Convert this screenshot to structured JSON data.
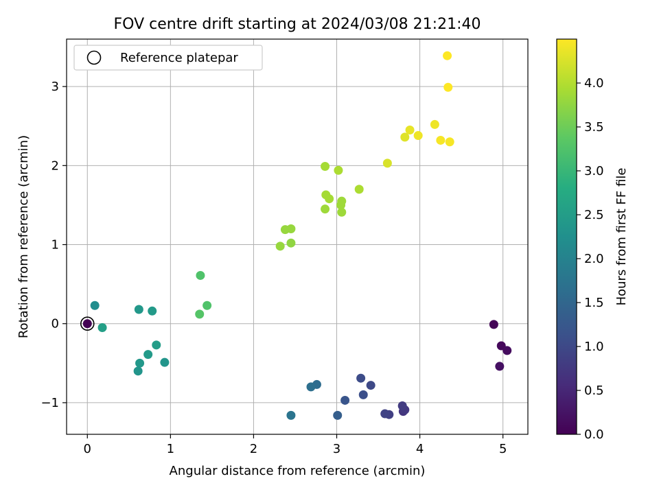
{
  "chart_data": {
    "type": "scatter",
    "title": "FOV centre drift starting at 2024/03/08 21:21:40",
    "xlabel": "Angular distance from reference (arcmin)",
    "ylabel": "Rotation from reference (arcmin)",
    "xlim": [
      -0.25,
      5.3
    ],
    "ylim": [
      -1.4,
      3.6
    ],
    "xticks": [
      0,
      1,
      2,
      3,
      4,
      5
    ],
    "xtick_labels": [
      "0",
      "1",
      "2",
      "3",
      "4",
      "5"
    ],
    "yticks": [
      -1,
      0,
      1,
      2,
      3
    ],
    "ytick_labels": [
      "−1",
      "0",
      "1",
      "2",
      "3"
    ],
    "grid": true,
    "legend": {
      "placement": "upper-left",
      "entries": [
        "Reference platepar"
      ]
    },
    "reference_point": {
      "x": 0,
      "y": 0
    },
    "colorbar": {
      "label": "Hours from first FF file",
      "colormap": "viridis",
      "range": [
        0,
        4.5
      ],
      "ticks": [
        0,
        0.5,
        1,
        1.5,
        2,
        2.5,
        3,
        3.5,
        4
      ],
      "tick_labels": [
        "0.0",
        "0.5",
        "1.0",
        "1.5",
        "2.0",
        "2.5",
        "3.0",
        "3.5",
        "4.0"
      ]
    },
    "points": [
      {
        "x": 0.0,
        "y": 0.0,
        "c": 0.0
      },
      {
        "x": 4.89,
        "y": -0.01,
        "c": 0.05
      },
      {
        "x": 4.98,
        "y": -0.28,
        "c": 0.1
      },
      {
        "x": 5.05,
        "y": -0.34,
        "c": 0.15
      },
      {
        "x": 4.96,
        "y": -0.54,
        "c": 0.2
      },
      {
        "x": 3.8,
        "y": -1.11,
        "c": 0.7
      },
      {
        "x": 3.82,
        "y": -1.09,
        "c": 0.75
      },
      {
        "x": 3.79,
        "y": -1.04,
        "c": 0.8
      },
      {
        "x": 3.63,
        "y": -1.15,
        "c": 0.85
      },
      {
        "x": 3.58,
        "y": -1.14,
        "c": 0.9
      },
      {
        "x": 3.41,
        "y": -0.78,
        "c": 1.0
      },
      {
        "x": 3.29,
        "y": -0.69,
        "c": 1.05
      },
      {
        "x": 3.32,
        "y": -0.9,
        "c": 1.1
      },
      {
        "x": 3.1,
        "y": -0.97,
        "c": 1.2
      },
      {
        "x": 3.01,
        "y": -1.16,
        "c": 1.35
      },
      {
        "x": 2.76,
        "y": -0.77,
        "c": 1.6
      },
      {
        "x": 2.69,
        "y": -0.8,
        "c": 1.65
      },
      {
        "x": 2.45,
        "y": -1.16,
        "c": 1.75
      },
      {
        "x": 0.09,
        "y": 0.23,
        "c": 2.2
      },
      {
        "x": 0.18,
        "y": -0.05,
        "c": 2.55
      },
      {
        "x": 0.62,
        "y": 0.18,
        "c": 2.4
      },
      {
        "x": 0.78,
        "y": 0.16,
        "c": 2.45
      },
      {
        "x": 0.83,
        "y": -0.27,
        "c": 2.5
      },
      {
        "x": 0.93,
        "y": -0.49,
        "c": 2.35
      },
      {
        "x": 0.73,
        "y": -0.39,
        "c": 2.45
      },
      {
        "x": 0.63,
        "y": -0.5,
        "c": 2.4
      },
      {
        "x": 0.61,
        "y": -0.6,
        "c": 2.35
      },
      {
        "x": 1.36,
        "y": 0.61,
        "c": 3.25
      },
      {
        "x": 1.44,
        "y": 0.23,
        "c": 3.25
      },
      {
        "x": 1.35,
        "y": 0.12,
        "c": 3.3
      },
      {
        "x": 2.32,
        "y": 0.98,
        "c": 3.8
      },
      {
        "x": 2.45,
        "y": 1.02,
        "c": 3.75
      },
      {
        "x": 2.38,
        "y": 1.19,
        "c": 3.8
      },
      {
        "x": 2.45,
        "y": 1.2,
        "c": 3.8
      },
      {
        "x": 2.86,
        "y": 1.45,
        "c": 3.85
      },
      {
        "x": 3.06,
        "y": 1.41,
        "c": 3.85
      },
      {
        "x": 3.05,
        "y": 1.5,
        "c": 3.85
      },
      {
        "x": 3.06,
        "y": 1.55,
        "c": 3.85
      },
      {
        "x": 2.91,
        "y": 1.58,
        "c": 3.9
      },
      {
        "x": 2.87,
        "y": 1.63,
        "c": 3.9
      },
      {
        "x": 3.27,
        "y": 1.7,
        "c": 3.95
      },
      {
        "x": 2.86,
        "y": 1.99,
        "c": 3.9
      },
      {
        "x": 3.02,
        "y": 1.94,
        "c": 3.95
      },
      {
        "x": 3.61,
        "y": 2.03,
        "c": 4.25
      },
      {
        "x": 3.82,
        "y": 2.36,
        "c": 4.3
      },
      {
        "x": 3.88,
        "y": 2.45,
        "c": 4.35
      },
      {
        "x": 3.98,
        "y": 2.38,
        "c": 4.4
      },
      {
        "x": 4.18,
        "y": 2.52,
        "c": 4.4
      },
      {
        "x": 4.25,
        "y": 2.32,
        "c": 4.45
      },
      {
        "x": 4.36,
        "y": 2.3,
        "c": 4.45
      },
      {
        "x": 4.34,
        "y": 2.99,
        "c": 4.5
      },
      {
        "x": 4.33,
        "y": 3.39,
        "c": 4.5
      }
    ]
  }
}
